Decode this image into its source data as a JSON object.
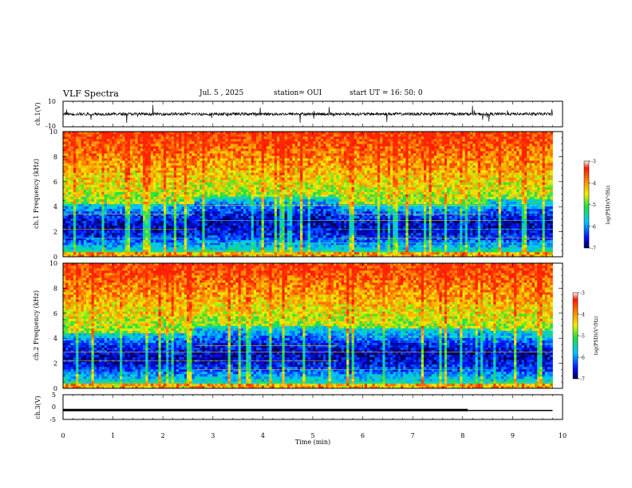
{
  "header": {
    "title": "VLF Spectra",
    "date": "Jul. 5 , 2025",
    "station": "station= OUI",
    "start": "start UT = 16: 50: 0"
  },
  "chart_data": [
    {
      "type": "line",
      "panel": "ch1-waveform",
      "ylabel": "ch.1(V)",
      "ylim": [
        -10,
        10
      ],
      "yticks": [
        "10",
        "-10"
      ],
      "xlim": [
        0,
        10
      ],
      "baseline": 0,
      "data_end_min": 9.8
    },
    {
      "type": "heatmap",
      "panel": "ch1-spectrogram",
      "ylabel": "ch.1\nFrequency (kHz)",
      "ylim": [
        0,
        10
      ],
      "yticks": [
        "0",
        "2",
        "4",
        "6",
        "8",
        "10"
      ],
      "xlim": [
        0,
        10
      ],
      "data_end_min": 9.8,
      "colorbar": {
        "label": "log(PSD)(V²/Hz)",
        "range": [
          -7,
          -3
        ],
        "ticks": [
          "-3",
          "-4",
          "-5",
          "-6",
          "-7"
        ]
      },
      "segments": [
        {
          "start": 0,
          "end": 2.65,
          "quiet_band_khz": [
            0.5,
            4.3
          ]
        },
        {
          "start": 2.65,
          "end": 5.5,
          "quiet_band_khz": [
            0.5,
            4.8
          ]
        },
        {
          "start": 5.5,
          "end": 8.5,
          "quiet_band_khz": [
            0.5,
            4.2
          ]
        },
        {
          "start": 8.5,
          "end": 9.8,
          "quiet_band_khz": [
            0.5,
            4.6
          ]
        }
      ]
    },
    {
      "type": "heatmap",
      "panel": "ch2-spectrogram",
      "ylabel": "ch.2\nFrequency (kHz)",
      "ylim": [
        0,
        10
      ],
      "yticks": [
        "0",
        "2",
        "4",
        "6",
        "8",
        "10"
      ],
      "xlim": [
        0,
        10
      ],
      "data_end_min": 9.8,
      "colorbar": {
        "label": "log(PSD)(V²/Hz)",
        "range": [
          -7,
          -3
        ],
        "ticks": [
          "-3",
          "-4",
          "-5",
          "-6",
          "-7"
        ]
      },
      "segments": [
        {
          "start": 0,
          "end": 2.65,
          "quiet_band_khz": [
            0.5,
            4.5
          ]
        },
        {
          "start": 2.65,
          "end": 5.5,
          "quiet_band_khz": [
            0.5,
            5.0
          ]
        },
        {
          "start": 5.5,
          "end": 8.5,
          "quiet_band_khz": [
            0.5,
            4.8
          ]
        },
        {
          "start": 8.5,
          "end": 9.8,
          "quiet_band_khz": [
            0.5,
            4.6
          ]
        }
      ]
    },
    {
      "type": "line",
      "panel": "ch3-waveform",
      "ylabel": "ch.3(V)",
      "ylim": [
        -5,
        5
      ],
      "yticks": [
        "5",
        "0",
        "-5"
      ],
      "xlim": [
        0,
        10
      ],
      "xlabel": "Time (min)",
      "xticks": [
        "0",
        "1",
        "2",
        "3",
        "4",
        "5",
        "6",
        "7",
        "8",
        "9",
        "10"
      ],
      "thick_level": -1.2,
      "thick_until": 8.1,
      "thin_until": 9.8
    }
  ]
}
